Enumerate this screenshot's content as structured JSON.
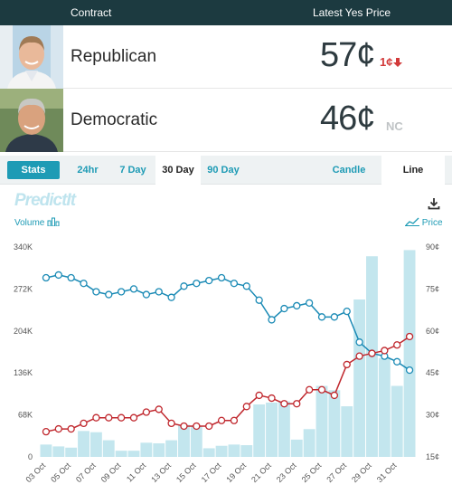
{
  "header": {
    "contract_label": "Contract",
    "latest_price_label": "Latest Yes Price"
  },
  "contracts": [
    {
      "name": "Republican",
      "price": "57¢",
      "change": "1¢",
      "change_dir": "down"
    },
    {
      "name": "Democratic",
      "price": "46¢",
      "change": "NC",
      "change_dir": "none"
    }
  ],
  "tabs": {
    "stats": "Stats",
    "ranges": [
      "24hr",
      "7 Day",
      "30 Day",
      "90 Day"
    ],
    "active_range": "30 Day",
    "chart_types": [
      "Candle",
      "Line"
    ],
    "active_chart_type": "Line"
  },
  "chart_header": {
    "logo": "PredictIt",
    "volume_label": "Volume",
    "price_label": "Price"
  },
  "colors": {
    "republican": "#c0272d",
    "democratic": "#1a8ab5",
    "volume_bar": "#c3e6ee",
    "accent": "#1e9bb5"
  },
  "chart_data": {
    "type": "line",
    "x": [
      "03 Oct",
      "04 Oct",
      "05 Oct",
      "06 Oct",
      "07 Oct",
      "08 Oct",
      "09 Oct",
      "10 Oct",
      "11 Oct",
      "12 Oct",
      "13 Oct",
      "14 Oct",
      "15 Oct",
      "16 Oct",
      "17 Oct",
      "18 Oct",
      "19 Oct",
      "20 Oct",
      "21 Oct",
      "22 Oct",
      "23 Oct",
      "24 Oct",
      "25 Oct",
      "26 Oct",
      "27 Oct",
      "28 Oct",
      "29 Oct",
      "30 Oct",
      "31 Oct",
      "01 Nov"
    ],
    "x_tick_labels": [
      "03 Oct",
      "05 Oct",
      "07 Oct",
      "09 Oct",
      "11 Oct",
      "13 Oct",
      "15 Oct",
      "17 Oct",
      "19 Oct",
      "21 Oct",
      "23 Oct",
      "25 Oct",
      "27 Oct",
      "29 Oct",
      "31 Oct"
    ],
    "series": [
      {
        "name": "",
        "axis": "price",
        "color": "#1a8ab5",
        "values": [
          79,
          80,
          79,
          77,
          74,
          73,
          74,
          75,
          73,
          74,
          72,
          76,
          77,
          78,
          79,
          77,
          76,
          71,
          64,
          68,
          69,
          70,
          65,
          65,
          67,
          56,
          52,
          51,
          49,
          46
        ]
      },
      {
        "name": "",
        "axis": "price",
        "color": "#c0272d",
        "values": [
          24,
          25,
          25,
          27,
          29,
          29,
          29,
          29,
          31,
          32,
          27,
          26,
          26,
          26,
          28,
          28,
          33,
          37,
          36,
          34,
          34,
          39,
          39,
          37,
          48,
          51,
          52,
          53,
          55,
          58
        ]
      }
    ],
    "volume": [
      20000,
      17000,
      15000,
      42000,
      40000,
      27000,
      10000,
      10000,
      23000,
      22000,
      27000,
      52000,
      50000,
      14000,
      18000,
      20000,
      19000,
      85000,
      88000,
      90000,
      28000,
      45000,
      115000,
      108000,
      82000,
      255000,
      325000,
      160000,
      115000,
      335000
    ],
    "y_left_ticks": [
      "0",
      "68K",
      "136K",
      "204K",
      "272K",
      "340K"
    ],
    "y_right_ticks": [
      "15¢",
      "30¢",
      "45¢",
      "60¢",
      "75¢",
      "90¢"
    ],
    "y_left_range": [
      0,
      340000
    ],
    "y_right_range": [
      15,
      90
    ],
    "grid": false,
    "legend": "top"
  }
}
